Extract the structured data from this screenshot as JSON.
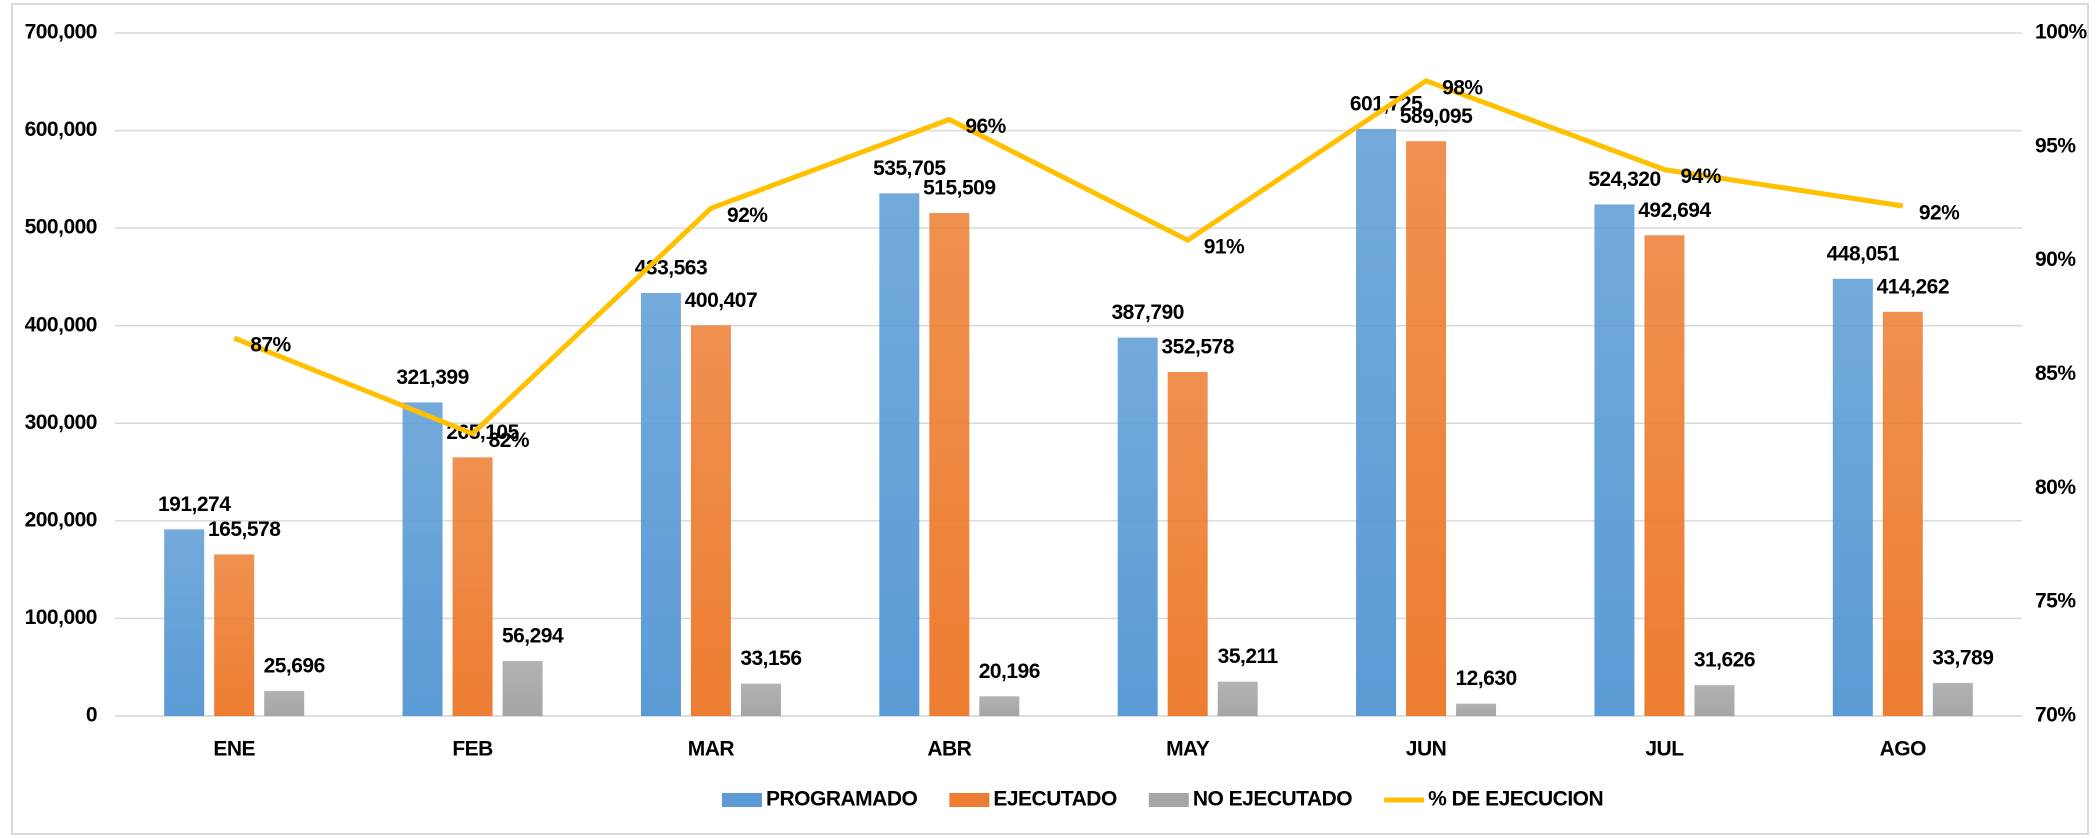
{
  "chart_data": {
    "type": "bar",
    "categories": [
      "ENE",
      "FEB",
      "MAR",
      "ABR",
      "MAY",
      "JUN",
      "JUL",
      "AGO"
    ],
    "series": [
      {
        "name": "PROGRAMADO",
        "color": "#5b9bd5",
        "values": [
          191274,
          321399,
          433563,
          535705,
          387790,
          601725,
          524320,
          448051
        ],
        "value_labels": [
          "191,274",
          "321,399",
          "433,563",
          "535,705",
          "387,790",
          "601,725",
          "524,320",
          "448,051"
        ]
      },
      {
        "name": "EJECUTADO",
        "color": "#ed7d31",
        "values": [
          165578,
          265105,
          400407,
          515509,
          352578,
          589095,
          492694,
          414262
        ],
        "value_labels": [
          "165,578",
          "265,105",
          "400,407",
          "515,509",
          "352,578",
          "589,095",
          "492,694",
          "414,262"
        ]
      },
      {
        "name": "NO EJECUTADO",
        "color": "#a5a5a5",
        "values": [
          25696,
          56294,
          33156,
          20196,
          35211,
          12630,
          31626,
          33789
        ],
        "value_labels": [
          "25,696",
          "56,294",
          "33,156",
          "20,196",
          "35,211",
          "12,630",
          "31,626",
          "33,789"
        ]
      },
      {
        "name": "% DE EJECUCION",
        "color": "#ffc000",
        "type": "line",
        "axis": "y2",
        "values": [
          86.6,
          82.4,
          92.3,
          96.2,
          90.9,
          97.9,
          94.0,
          92.4
        ],
        "value_labels": [
          "87%",
          "82%",
          "92%",
          "96%",
          "91%",
          "98%",
          "94%",
          "92%"
        ]
      }
    ],
    "ylim": [
      0,
      700000
    ],
    "yticks": [
      0,
      {
        "value": 100000,
        "label": "100,000"
      },
      {
        "value": 200000,
        "label": "200,000"
      },
      {
        "value": 300000,
        "label": "300,000"
      },
      {
        "value": 400000,
        "label": "400,000"
      },
      {
        "value": 500000,
        "label": "500,000"
      },
      {
        "value": 600000,
        "label": "600,000"
      },
      {
        "value": 700000,
        "label": "700,000"
      }
    ],
    "y2lim": [
      70,
      100
    ],
    "y2ticks": [
      {
        "value": 70,
        "label": "70%"
      },
      {
        "value": 75,
        "label": "75%"
      },
      {
        "value": 80,
        "label": "80%"
      },
      {
        "value": 85,
        "label": "85%"
      },
      {
        "value": 90,
        "label": "90%"
      },
      {
        "value": 95,
        "label": "95%"
      },
      {
        "value": 100,
        "label": "100%"
      }
    ],
    "grid": true,
    "legend": "bottom"
  }
}
